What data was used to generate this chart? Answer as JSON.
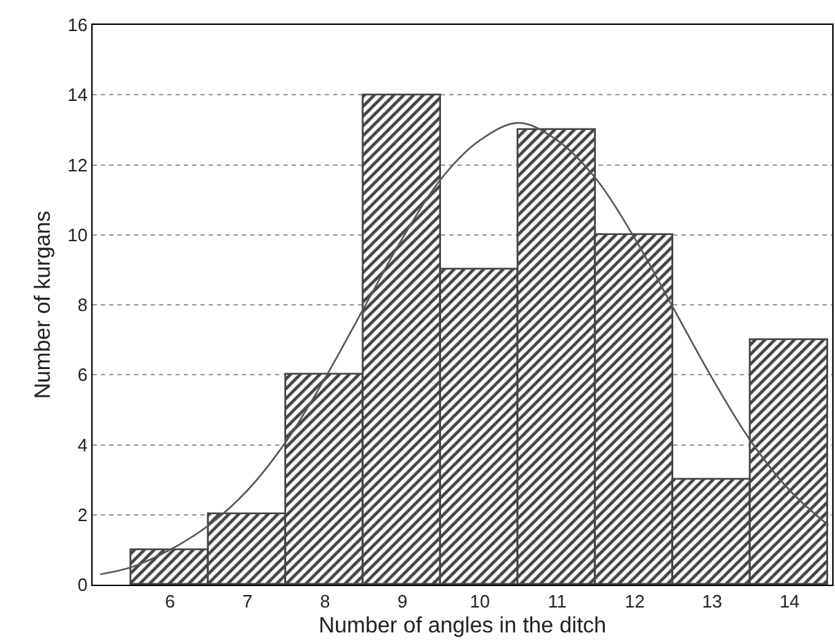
{
  "chart_data": {
    "type": "histogram",
    "xlabel": "Number of angles in the ditch",
    "ylabel": "Number of kurgans",
    "bins": [
      5.5,
      6.5,
      7.5,
      8.5,
      9.5,
      10.5,
      11.5,
      12.5,
      13.5,
      14.5
    ],
    "values": [
      1,
      2,
      6,
      14,
      9,
      13,
      10,
      3,
      7
    ],
    "color": "#444444",
    "series": [
      {
        "type": "line",
        "color": "#555555",
        "x": [
          5.1,
          5.5,
          6,
          6.5,
          7,
          7.5,
          8,
          8.5,
          9,
          9.5,
          10,
          10.5,
          11,
          11.5,
          12,
          12.5,
          13,
          13.5,
          14,
          14.5
        ],
        "values": [
          0.3,
          0.5,
          1,
          1.7,
          2.7,
          4.1,
          5.9,
          7.9,
          9.9,
          11.6,
          12.7,
          13.2,
          12.7,
          11.6,
          9.9,
          7.9,
          5.9,
          4.1,
          2.7,
          1.7
        ]
      }
    ],
    "xlim": [
      5,
      14.55
    ],
    "xticks": [
      6,
      7,
      8,
      9,
      10,
      11,
      12,
      13,
      14
    ],
    "ylim": [
      0,
      16
    ],
    "yticks": [
      0,
      2,
      4,
      6,
      8,
      10,
      12,
      14,
      16
    ],
    "grid": "y"
  }
}
